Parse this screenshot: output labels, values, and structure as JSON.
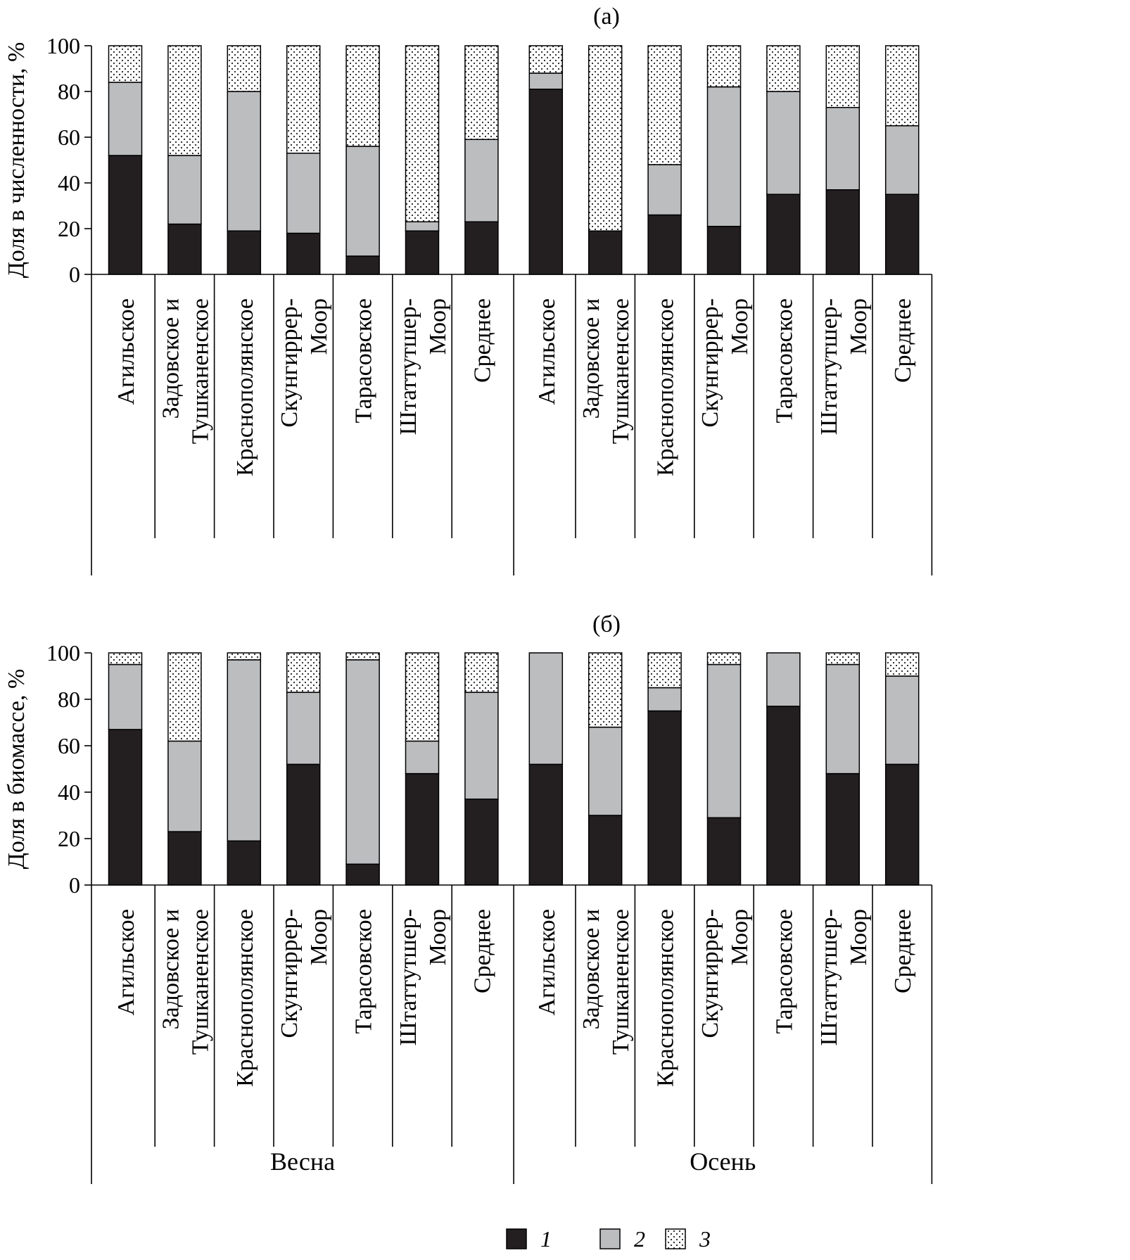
{
  "colors": {
    "seg1": "#231f20",
    "seg2": "#bcbdbf",
    "seg3_bg": "#ffffff",
    "seg3_dot": "#231f20",
    "axis": "#000000"
  },
  "legend": {
    "items": [
      {
        "label": "1",
        "style": "solid-black"
      },
      {
        "label": "2",
        "style": "solid-gray"
      },
      {
        "label": "3",
        "style": "dotted"
      }
    ]
  },
  "groups": [
    {
      "label": "Весна",
      "start": 0,
      "end": 6
    },
    {
      "label": "Осень",
      "start": 7,
      "end": 13
    }
  ],
  "category_labels": [
    [
      "Агильское"
    ],
    [
      "Задовское и",
      "Тушканенское"
    ],
    [
      "Краснополянское"
    ],
    [
      "Скунгиррер-",
      "Моор"
    ],
    [
      "Тарасовское"
    ],
    [
      "Штаттутшер-",
      "Моор"
    ],
    [
      "Среднее"
    ],
    [
      "Агильское"
    ],
    [
      "Задовское и",
      "Тушканенское"
    ],
    [
      "Краснополянское"
    ],
    [
      "Скунгиррер-",
      "Моор"
    ],
    [
      "Тарасовское"
    ],
    [
      "Штаттутшер-",
      "Моор"
    ],
    [
      "Среднее"
    ]
  ],
  "chart_data": [
    {
      "type": "bar",
      "stacked": true,
      "title": "(а)",
      "ylabel": "Доля в численности, %",
      "xlabel": "",
      "ylim": [
        0,
        100
      ],
      "yticks": [
        0,
        20,
        40,
        60,
        80,
        100
      ],
      "categories": [
        "Агильское",
        "Задовское и Тушканенское",
        "Краснополянское",
        "Скунгиррер-Моор",
        "Тарасовское",
        "Штаттутшер-Моор",
        "Среднее",
        "Агильское",
        "Задовское и Тушканенское",
        "Краснополянское",
        "Скунгиррер-Моор",
        "Тарасовское",
        "Штаттутшер-Моор",
        "Среднее"
      ],
      "series": [
        {
          "name": "1",
          "values": [
            52,
            22,
            19,
            18,
            8,
            19,
            23,
            81,
            19,
            26,
            21,
            35,
            37,
            35
          ]
        },
        {
          "name": "2",
          "values": [
            32,
            30,
            61,
            35,
            48,
            4,
            36,
            7,
            0,
            22,
            61,
            45,
            36,
            30
          ]
        },
        {
          "name": "3",
          "values": [
            16,
            48,
            20,
            47,
            44,
            77,
            41,
            12,
            81,
            52,
            18,
            20,
            27,
            35
          ]
        }
      ]
    },
    {
      "type": "bar",
      "stacked": true,
      "title": "(б)",
      "ylabel": "Доля в биомассе, %",
      "xlabel": "",
      "ylim": [
        0,
        100
      ],
      "yticks": [
        0,
        20,
        40,
        60,
        80,
        100
      ],
      "categories": [
        "Агильское",
        "Задовское и Тушканенское",
        "Краснополянское",
        "Скунгиррер-Моор",
        "Тарасовское",
        "Штаттутшер-Моор",
        "Среднее",
        "Агильское",
        "Задовское и Тушканенское",
        "Краснополянское",
        "Скунгиррер-Моор",
        "Тарасовское",
        "Штаттутшер-Моор",
        "Среднее"
      ],
      "series": [
        {
          "name": "1",
          "values": [
            67,
            23,
            19,
            52,
            9,
            48,
            37,
            52,
            30,
            75,
            29,
            77,
            48,
            52
          ]
        },
        {
          "name": "2",
          "values": [
            28,
            39,
            78,
            31,
            88,
            14,
            46,
            48,
            38,
            10,
            66,
            23,
            47,
            38
          ]
        },
        {
          "name": "3",
          "values": [
            5,
            38,
            3,
            17,
            3,
            38,
            17,
            0,
            32,
            15,
            5,
            0,
            5,
            10
          ]
        }
      ]
    }
  ]
}
